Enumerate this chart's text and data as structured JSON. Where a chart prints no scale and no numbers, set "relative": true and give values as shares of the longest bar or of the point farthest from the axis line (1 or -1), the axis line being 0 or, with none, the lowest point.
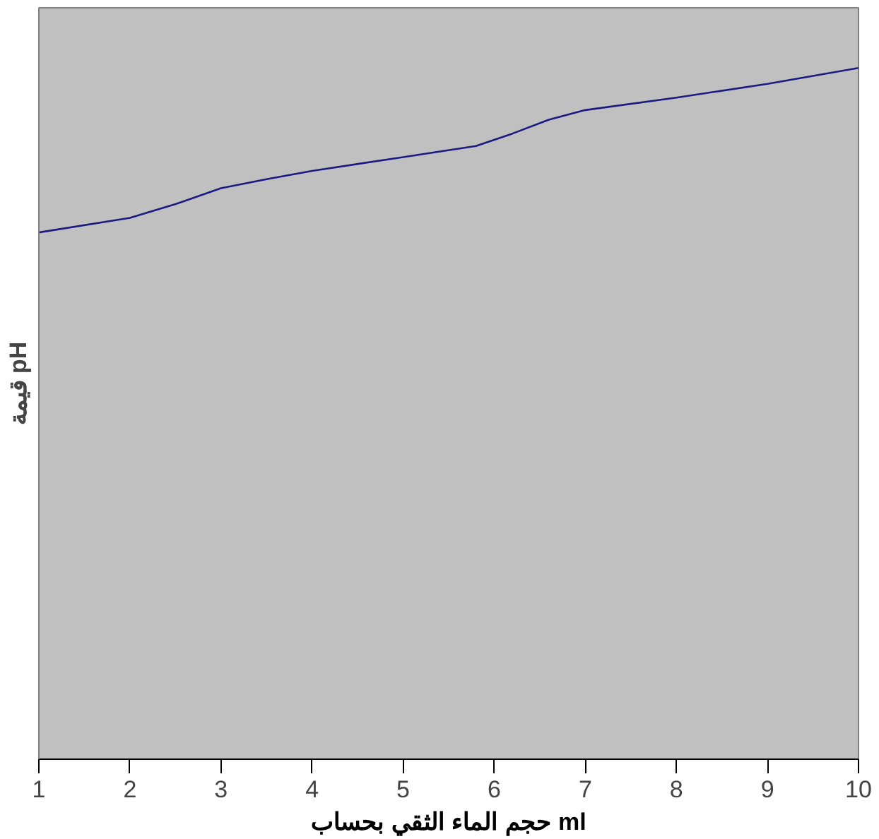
{
  "chart_data": {
    "type": "line",
    "relative": true,
    "xlabel": "حجم الماء الثقي بحساب ml",
    "ylabel": "قيمة pH",
    "x": [
      1,
      2,
      2.5,
      3,
      3.5,
      4,
      5,
      5.8,
      6.2,
      6.6,
      7,
      8,
      9,
      10
    ],
    "series": [
      {
        "color": "#1a1a80",
        "values": [
          0.762,
          0.783,
          0.803,
          0.826,
          0.839,
          0.851,
          0.871,
          0.887,
          0.905,
          0.925,
          0.939,
          0.957,
          0.977,
          1.0
        ]
      }
    ],
    "xlim": [
      1,
      10
    ],
    "xticks": [
      1,
      2,
      3,
      4,
      5,
      6,
      7,
      8,
      9,
      10
    ],
    "grid": false
  }
}
